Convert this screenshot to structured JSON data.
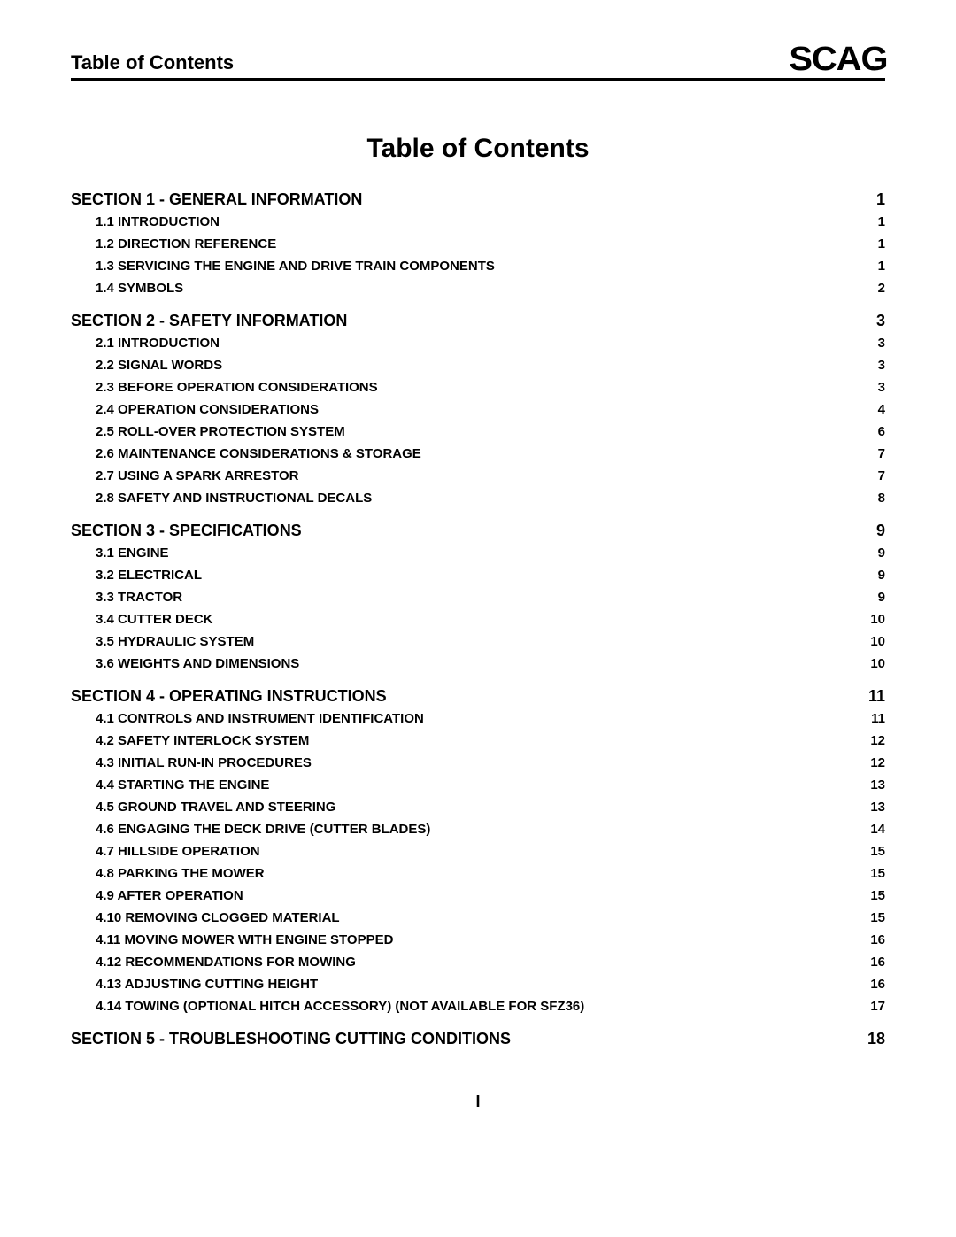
{
  "header": {
    "title": "Table of Contents",
    "logo": "SCAG"
  },
  "main_title": "Table of Contents",
  "footer_page": "I",
  "sections": [
    {
      "label": "SECTION 1 - GENERAL INFORMATION",
      "page": "1",
      "items": [
        {
          "label": "1.1 INTRODUCTION",
          "page": "1"
        },
        {
          "label": "1.2 DIRECTION REFERENCE",
          "page": "1"
        },
        {
          "label": "1.3 SERVICING THE ENGINE AND DRIVE TRAIN COMPONENTS",
          "page": "1"
        },
        {
          "label": "1.4 SYMBOLS",
          "page": "2"
        }
      ]
    },
    {
      "label": "SECTION 2 - SAFETY INFORMATION",
      "page": "3",
      "items": [
        {
          "label": "2.1 INTRODUCTION",
          "page": "3"
        },
        {
          "label": "2.2 SIGNAL WORDS",
          "page": "3"
        },
        {
          "label": "2.3 BEFORE OPERATION CONSIDERATIONS",
          "page": "3"
        },
        {
          "label": "2.4 OPERATION CONSIDERATIONS",
          "page": "4"
        },
        {
          "label": "2.5 ROLL-OVER PROTECTION SYSTEM",
          "page": "6"
        },
        {
          "label": "2.6 MAINTENANCE CONSIDERATIONS & STORAGE",
          "page": "7"
        },
        {
          "label": "2.7 USING A SPARK ARRESTOR",
          "page": "7"
        },
        {
          "label": "2.8 SAFETY AND INSTRUCTIONAL DECALS",
          "page": "8"
        }
      ]
    },
    {
      "label": "SECTION 3 - SPECIFICATIONS",
      "page": "9",
      "items": [
        {
          "label": "3.1 ENGINE",
          "page": "9"
        },
        {
          "label": "3.2 ELECTRICAL",
          "page": "9"
        },
        {
          "label": "3.3 TRACTOR",
          "page": "9"
        },
        {
          "label": "3.4 CUTTER DECK",
          "page": "10"
        },
        {
          "label": "3.5 HYDRAULIC SYSTEM",
          "page": "10"
        },
        {
          "label": "3.6 WEIGHTS AND DIMENSIONS",
          "page": "10"
        }
      ]
    },
    {
      "label": "SECTION 4 - OPERATING INSTRUCTIONS",
      "page": "11",
      "items": [
        {
          "label": "4.1 CONTROLS AND INSTRUMENT IDENTIFICATION",
          "page": "11"
        },
        {
          "label": "4.2 SAFETY INTERLOCK SYSTEM",
          "page": "12"
        },
        {
          "label": "4.3 INITIAL RUN-IN PROCEDURES",
          "page": "12"
        },
        {
          "label": "4.4 STARTING THE ENGINE",
          "page": "13"
        },
        {
          "label": "4.5 GROUND TRAVEL AND STEERING",
          "page": "13"
        },
        {
          "label": "4.6 ENGAGING THE DECK DRIVE (CUTTER BLADES)",
          "page": "14"
        },
        {
          "label": "4.7 HILLSIDE OPERATION",
          "page": "15"
        },
        {
          "label": "4.8 PARKING THE MOWER",
          "page": "15"
        },
        {
          "label": "4.9 AFTER OPERATION",
          "page": "15"
        },
        {
          "label": "4.10 REMOVING CLOGGED MATERIAL",
          "page": "15"
        },
        {
          "label": "4.11 MOVING MOWER WITH ENGINE STOPPED",
          "page": "16"
        },
        {
          "label": "4.12 RECOMMENDATIONS FOR MOWING",
          "page": "16"
        },
        {
          "label": "4.13 ADJUSTING CUTTING HEIGHT",
          "page": "16"
        },
        {
          "label": "4.14 TOWING (OPTIONAL HITCH ACCESSORY) (NOT AVAILABLE FOR SFZ36)",
          "page": "17"
        }
      ]
    },
    {
      "label": "SECTION 5 - TROUBLESHOOTING CUTTING CONDITIONS",
      "page": "18",
      "items": []
    }
  ]
}
